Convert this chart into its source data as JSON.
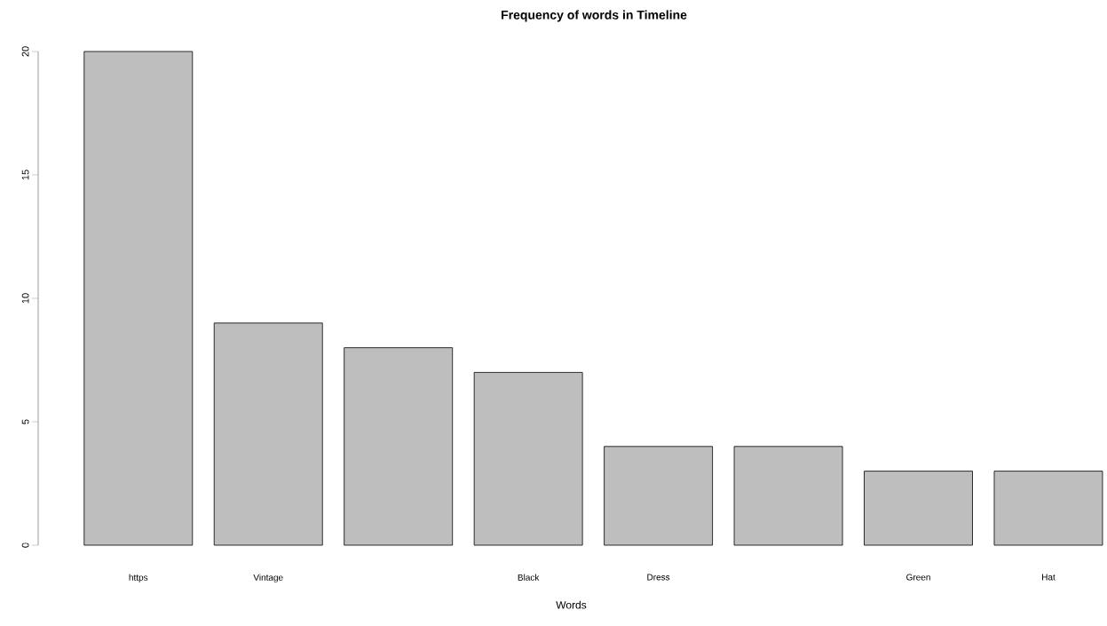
{
  "chart_data": {
    "type": "bar",
    "title": "Frequency of words in Timeline",
    "xlabel": "Words",
    "categories": [
      "https",
      "Vintage",
      null,
      "Black",
      "Dress",
      null,
      "Green",
      "Hat"
    ],
    "values": [
      20,
      9,
      8,
      7,
      4,
      4,
      3,
      3
    ],
    "color": "#bebebe",
    "ylim": [
      0,
      20
    ],
    "yticks": [
      0,
      5,
      10,
      15,
      20
    ]
  }
}
